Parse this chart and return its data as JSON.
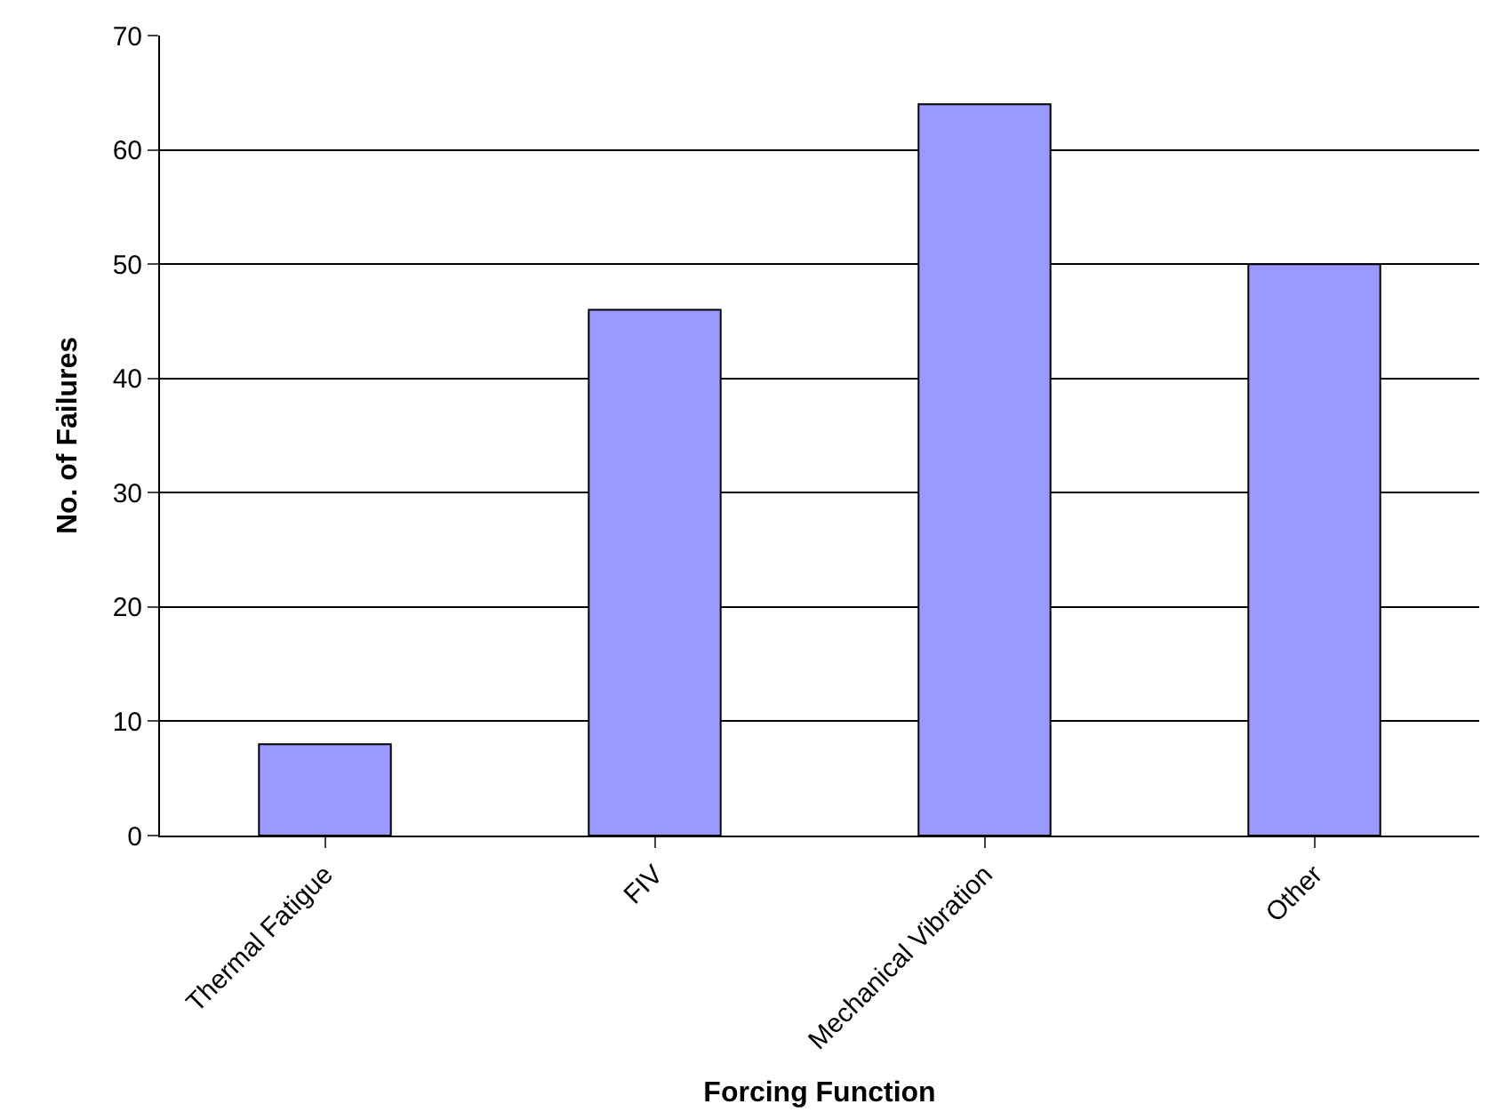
{
  "chart_data": {
    "type": "bar",
    "xlabel": "Forcing Function",
    "ylabel": "No. of Failures",
    "categories": [
      "Thermal Fatigue",
      "FIV",
      "Mechanical Vibration",
      "Other"
    ],
    "values": [
      8,
      46,
      64,
      50
    ],
    "color": "#9999ff",
    "ylim": [
      0,
      70
    ],
    "yticks": [
      0,
      10,
      20,
      30,
      40,
      50,
      60,
      70
    ],
    "grid": "y",
    "legend": false
  }
}
